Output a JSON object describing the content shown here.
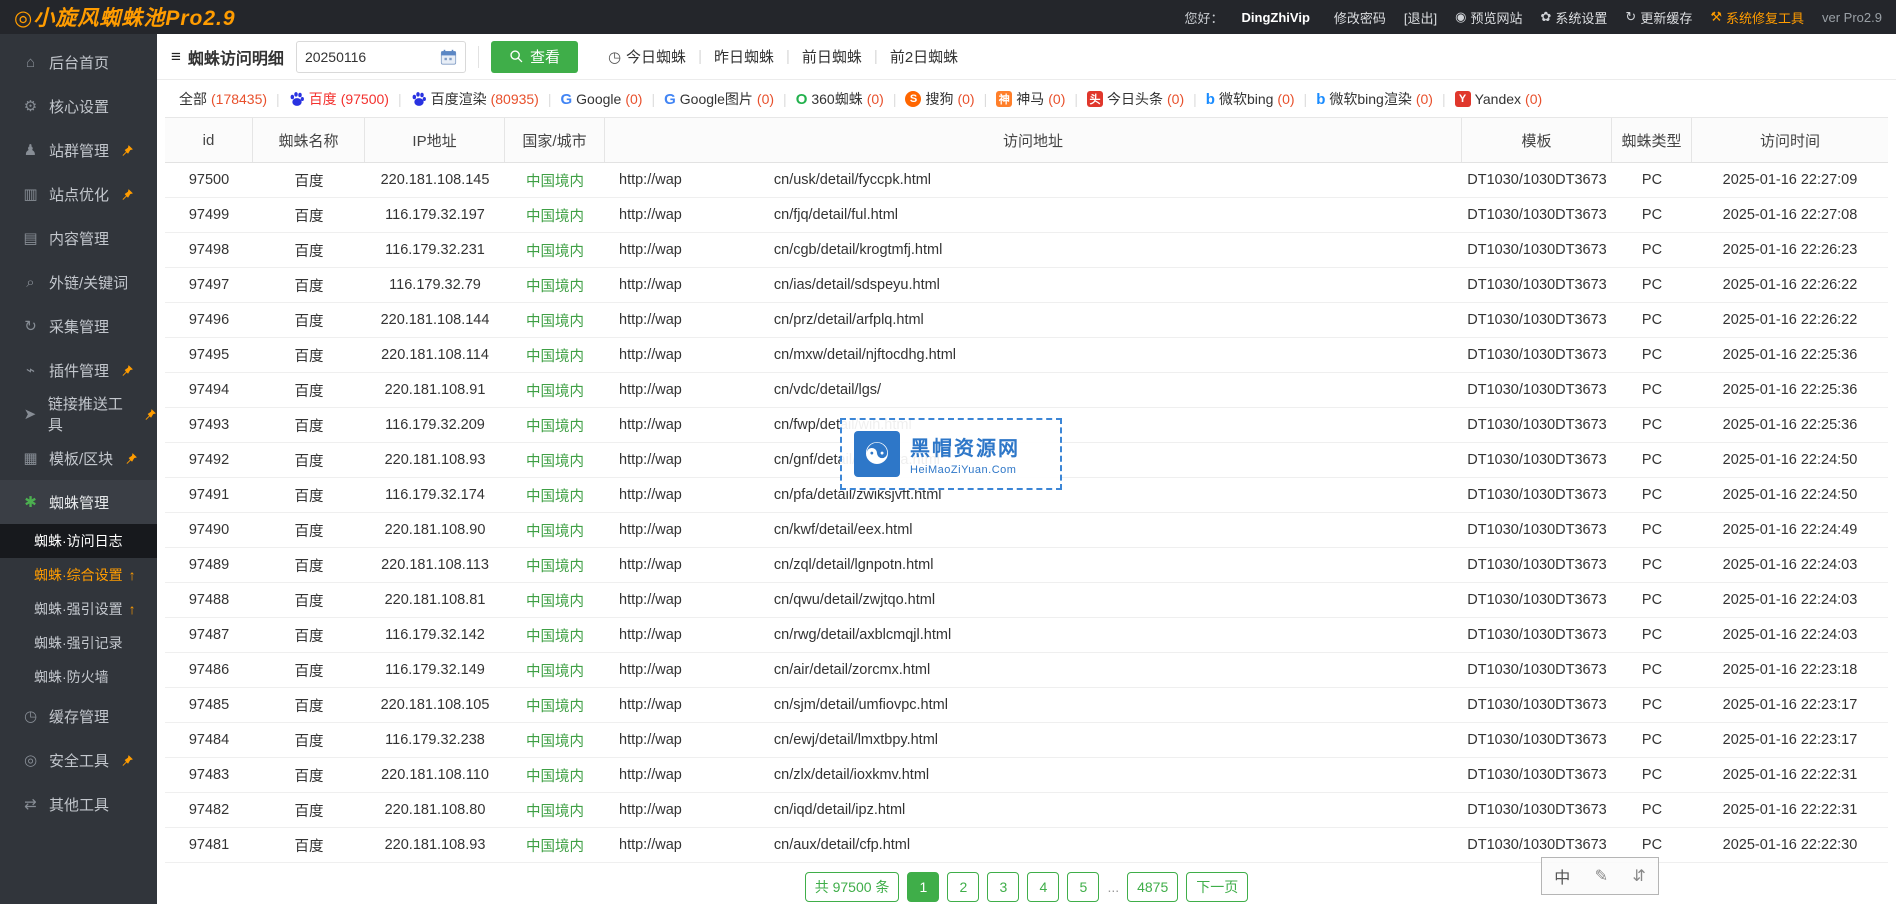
{
  "header": {
    "title": "◎小旋风蜘蛛池Pro2.9",
    "greeting": "您好：",
    "username": "DingZhiVip",
    "change_password": "修改密码",
    "logout": "[退出]",
    "menu": [
      {
        "label": "预览网站",
        "icon": "preview-site-icon",
        "glyph": "◉"
      },
      {
        "label": "系统设置",
        "icon": "system-settings-icon",
        "glyph": "✿"
      },
      {
        "label": "更新缓存",
        "icon": "update-cache-icon",
        "glyph": "↻"
      },
      {
        "label": "系统修复工具",
        "icon": "repair-tool-icon",
        "glyph": "⚒",
        "orange": true
      }
    ],
    "version": "ver Pro2.9"
  },
  "sidebar": {
    "items": [
      {
        "label": "后台首页",
        "icon": "desktop-icon",
        "glyph": "⌂",
        "pinned": false
      },
      {
        "label": "核心设置",
        "icon": "gear-icon",
        "glyph": "⚙",
        "pinned": false
      },
      {
        "label": "站群管理",
        "icon": "user-icon",
        "glyph": "♟",
        "pinned": true
      },
      {
        "label": "站点优化",
        "icon": "chart-icon",
        "glyph": "▥",
        "pinned": true
      },
      {
        "label": "内容管理",
        "icon": "document-icon",
        "glyph": "▤",
        "pinned": false
      },
      {
        "label": "外链/关键词",
        "icon": "search-icon",
        "glyph": "⌕",
        "pinned": false
      },
      {
        "label": "采集管理",
        "icon": "collect-icon",
        "glyph": "↻",
        "pinned": false
      },
      {
        "label": "插件管理",
        "icon": "plugin-icon",
        "glyph": "⌁",
        "pinned": true
      },
      {
        "label": "链接推送工具",
        "icon": "push-link-icon",
        "glyph": "➤",
        "pinned": true
      },
      {
        "label": "模板/区块",
        "icon": "template-blocks-icon",
        "glyph": "▦",
        "pinned": true
      },
      {
        "label": "蜘蛛管理",
        "icon": "spider-icon",
        "glyph": "✱",
        "pinned": false,
        "expanded": true,
        "children": [
          {
            "label": "蜘蛛·访问日志",
            "active": true
          },
          {
            "label": "蜘蛛·综合设置",
            "arrow": "↑",
            "highlight": true
          },
          {
            "label": "蜘蛛·强引设置",
            "arrow": "↑",
            "highlight": false
          },
          {
            "label": "蜘蛛·强引记录"
          },
          {
            "label": "蜘蛛·防火墙"
          }
        ]
      },
      {
        "label": "缓存管理",
        "icon": "cache-icon",
        "glyph": "◷",
        "pinned": false
      },
      {
        "label": "安全工具",
        "icon": "security-tools-icon",
        "glyph": "◎",
        "pinned": true
      },
      {
        "label": "其他工具",
        "icon": "other-tools-icon",
        "glyph": "⇄",
        "pinned": false
      }
    ]
  },
  "toolbar": {
    "title": "蜘蛛访问明细",
    "title_glyph": "≡",
    "date_value": "20250116",
    "view_button": "查看",
    "today_tab_glyph": "◷",
    "tabs": [
      "今日蜘蛛",
      "昨日蜘蛛",
      "前日蜘蛛",
      "前2日蜘蛛"
    ]
  },
  "filters": [
    {
      "label": "全部",
      "count": "178435",
      "icon": "none",
      "active": false
    },
    {
      "label": "百度",
      "count": "97500",
      "icon": "baidu-paw-icon",
      "active": true
    },
    {
      "label": "百度渲染",
      "count": "80935",
      "icon": "baidu-paw-icon",
      "active": false
    },
    {
      "label": "Google",
      "count": "0",
      "icon": "google-icon",
      "active": false
    },
    {
      "label": "Google图片",
      "count": "0",
      "icon": "google-icon",
      "active": false
    },
    {
      "label": "360蜘蛛",
      "count": "0",
      "icon": "360-icon",
      "active": false
    },
    {
      "label": "搜狗",
      "count": "0",
      "icon": "sogou-icon",
      "active": false
    },
    {
      "label": "神马",
      "count": "0",
      "icon": "shenma-icon",
      "active": false
    },
    {
      "label": "今日头条",
      "count": "0",
      "icon": "toutiao-icon",
      "active": false
    },
    {
      "label": "微软bing",
      "count": "0",
      "icon": "bing-icon",
      "active": false
    },
    {
      "label": "微软bing渲染",
      "count": "0",
      "icon": "bing-icon",
      "active": false
    },
    {
      "label": "Yandex",
      "count": "0",
      "icon": "yandex-icon",
      "active": false
    }
  ],
  "table": {
    "columns": [
      "id",
      "蜘蛛名称",
      "IP地址",
      "国家/城市",
      "访问地址",
      "模板",
      "蜘蛛类型",
      "访问时间"
    ],
    "url_prefix": "http://wap",
    "rows": [
      {
        "id": "97500",
        "name": "百度",
        "ip": "220.181.108.145",
        "region": "中国境内",
        "path": "cn/usk/detail/fyccpk.html",
        "template": "DT1030/1030DT3673",
        "type": "PC",
        "time": "2025-01-16 22:27:09"
      },
      {
        "id": "97499",
        "name": "百度",
        "ip": "116.179.32.197",
        "region": "中国境内",
        "path": "cn/fjq/detail/ful.html",
        "template": "DT1030/1030DT3673",
        "type": "PC",
        "time": "2025-01-16 22:27:08"
      },
      {
        "id": "97498",
        "name": "百度",
        "ip": "116.179.32.231",
        "region": "中国境内",
        "path": "cn/cgb/detail/krogtmfj.html",
        "template": "DT1030/1030DT3673",
        "type": "PC",
        "time": "2025-01-16 22:26:23"
      },
      {
        "id": "97497",
        "name": "百度",
        "ip": "116.179.32.79",
        "region": "中国境内",
        "path": "cn/ias/detail/sdspeyu.html",
        "template": "DT1030/1030DT3673",
        "type": "PC",
        "time": "2025-01-16 22:26:22"
      },
      {
        "id": "97496",
        "name": "百度",
        "ip": "220.181.108.144",
        "region": "中国境内",
        "path": "cn/prz/detail/arfplq.html",
        "template": "DT1030/1030DT3673",
        "type": "PC",
        "time": "2025-01-16 22:26:22"
      },
      {
        "id": "97495",
        "name": "百度",
        "ip": "220.181.108.114",
        "region": "中国境内",
        "path": "cn/mxw/detail/njftocdhg.html",
        "template": "DT1030/1030DT3673",
        "type": "PC",
        "time": "2025-01-16 22:25:36"
      },
      {
        "id": "97494",
        "name": "百度",
        "ip": "220.181.108.91",
        "region": "中国境内",
        "path": "cn/vdc/detail/lgs/",
        "template": "DT1030/1030DT3673",
        "type": "PC",
        "time": "2025-01-16 22:25:36"
      },
      {
        "id": "97493",
        "name": "百度",
        "ip": "116.179.32.209",
        "region": "中国境内",
        "path": "cn/fwp/detail/wih.html",
        "template": "DT1030/1030DT3673",
        "type": "PC",
        "time": "2025-01-16 22:25:36"
      },
      {
        "id": "97492",
        "name": "百度",
        "ip": "220.181.108.93",
        "region": "中国境内",
        "path": "cn/gnf/detail/qovpdra.html",
        "template": "DT1030/1030DT3673",
        "type": "PC",
        "time": "2025-01-16 22:24:50"
      },
      {
        "id": "97491",
        "name": "百度",
        "ip": "116.179.32.174",
        "region": "中国境内",
        "path": "cn/pfa/detail/zwiksjvft.html",
        "template": "DT1030/1030DT3673",
        "type": "PC",
        "time": "2025-01-16 22:24:50"
      },
      {
        "id": "97490",
        "name": "百度",
        "ip": "220.181.108.90",
        "region": "中国境内",
        "path": "cn/kwf/detail/eex.html",
        "template": "DT1030/1030DT3673",
        "type": "PC",
        "time": "2025-01-16 22:24:49"
      },
      {
        "id": "97489",
        "name": "百度",
        "ip": "220.181.108.113",
        "region": "中国境内",
        "path": "cn/zql/detail/lgnpotn.html",
        "template": "DT1030/1030DT3673",
        "type": "PC",
        "time": "2025-01-16 22:24:03"
      },
      {
        "id": "97488",
        "name": "百度",
        "ip": "220.181.108.81",
        "region": "中国境内",
        "path": "cn/qwu/detail/zwjtqo.html",
        "template": "DT1030/1030DT3673",
        "type": "PC",
        "time": "2025-01-16 22:24:03"
      },
      {
        "id": "97487",
        "name": "百度",
        "ip": "116.179.32.142",
        "region": "中国境内",
        "path": "cn/rwg/detail/axblcmqjl.html",
        "template": "DT1030/1030DT3673",
        "type": "PC",
        "time": "2025-01-16 22:24:03"
      },
      {
        "id": "97486",
        "name": "百度",
        "ip": "116.179.32.149",
        "region": "中国境内",
        "path": "cn/air/detail/zorcmx.html",
        "template": "DT1030/1030DT3673",
        "type": "PC",
        "time": "2025-01-16 22:23:18"
      },
      {
        "id": "97485",
        "name": "百度",
        "ip": "220.181.108.105",
        "region": "中国境内",
        "path": "cn/sjm/detail/umfiovpc.html",
        "template": "DT1030/1030DT3673",
        "type": "PC",
        "time": "2025-01-16 22:23:17"
      },
      {
        "id": "97484",
        "name": "百度",
        "ip": "116.179.32.238",
        "region": "中国境内",
        "path": "cn/ewj/detail/lmxtbpy.html",
        "template": "DT1030/1030DT3673",
        "type": "PC",
        "time": "2025-01-16 22:23:17"
      },
      {
        "id": "97483",
        "name": "百度",
        "ip": "220.181.108.110",
        "region": "中国境内",
        "path": "cn/zlx/detail/ioxkmv.html",
        "template": "DT1030/1030DT3673",
        "type": "PC",
        "time": "2025-01-16 22:22:31"
      },
      {
        "id": "97482",
        "name": "百度",
        "ip": "220.181.108.80",
        "region": "中国境内",
        "path": "cn/iqd/detail/ipz.html",
        "template": "DT1030/1030DT3673",
        "type": "PC",
        "time": "2025-01-16 22:22:31"
      },
      {
        "id": "97481",
        "name": "百度",
        "ip": "220.181.108.93",
        "region": "中国境内",
        "path": "cn/aux/detail/cfp.html",
        "template": "DT1030/1030DT3673",
        "type": "PC",
        "time": "2025-01-16 22:22:30"
      }
    ]
  },
  "pagination": {
    "total_label": "共 97500 条",
    "pages": [
      "1",
      "2",
      "3",
      "4",
      "5"
    ],
    "current": "1",
    "ellipsis": "...",
    "last_page": "4875",
    "next_label": "下一页"
  },
  "watermark": {
    "title": "黑帽资源网",
    "subtitle": "HeiMaoZiYuan.Com",
    "logo_glyph": "☯"
  },
  "ime": {
    "language_indicator": "中",
    "pen_glyph": "✎",
    "swap_glyph": "⇵"
  },
  "colors": {
    "accent_orange": "#ff9c00",
    "accent_green": "#3fae49",
    "active_red": "#f3312e",
    "count_orange": "#e8502c",
    "region_green": "#3fa045",
    "watermark_blue": "#2e77c8",
    "baidu_blue": "#2932e1",
    "topbar_dark": "#24262b",
    "sidebar_dark": "#31353b"
  }
}
